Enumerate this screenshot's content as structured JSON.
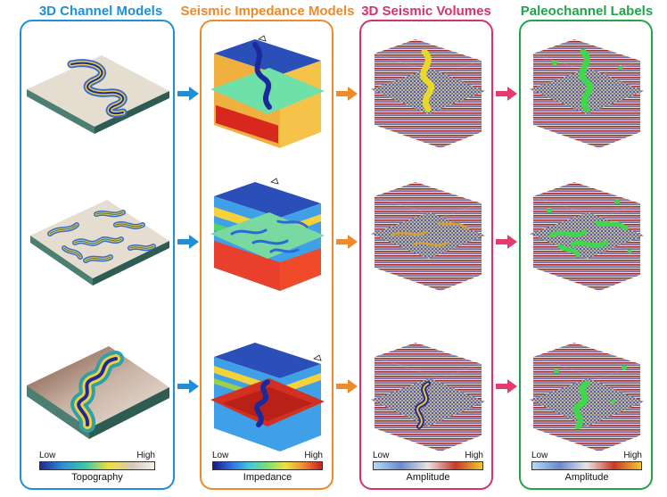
{
  "columns": [
    {
      "title": "3D Channel Models",
      "color": "#1f8fd6"
    },
    {
      "title": "Seismic Impedance Models",
      "color": "#ee8a2a"
    },
    {
      "title": "3D Seismic Volumes",
      "color": "#d6336c"
    },
    {
      "title": "Paleochannel Labels",
      "color": "#23a34a"
    }
  ],
  "colorbars": [
    {
      "low": "Low",
      "high": "High",
      "label": "Topography"
    },
    {
      "low": "Low",
      "high": "High",
      "label": "Impedance"
    },
    {
      "low": "Low",
      "high": "High",
      "label": "Amplitude"
    },
    {
      "low": "Low",
      "high": "High",
      "label": "Amplitude"
    }
  ],
  "arrow_colors": [
    "#1f8fd6",
    "#ee8a2a",
    "#e83a6e"
  ]
}
